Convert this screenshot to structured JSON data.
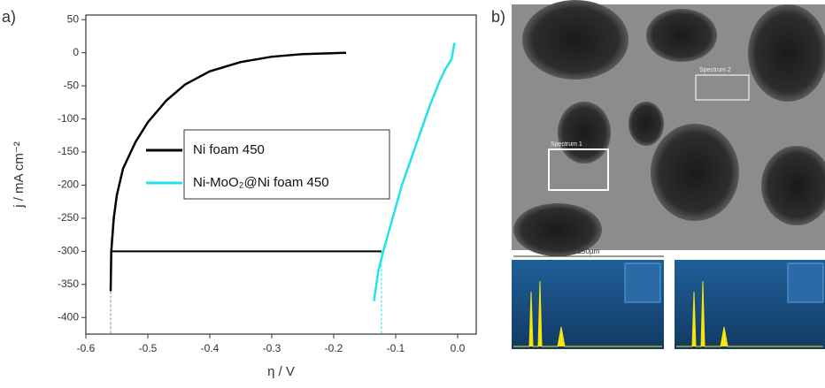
{
  "chart_data": {
    "type": "line",
    "panel_label": "a)",
    "xlabel": "η / V",
    "ylabel": "j / mA cm⁻²",
    "xlim": [
      -0.6,
      0.03
    ],
    "ylim": [
      -425,
      57
    ],
    "xticks": [
      -0.6,
      -0.5,
      -0.4,
      -0.3,
      -0.2,
      -0.1,
      {
        "value": 0,
        "label": "0.0"
      }
    ],
    "yticks": [
      50,
      0,
      -50,
      -100,
      -150,
      -200,
      -250,
      -300,
      -350,
      -400
    ],
    "legend": "center",
    "series": [
      {
        "name": "Ni foam 450",
        "color": "#000000",
        "x": [
          -0.56,
          -0.559,
          -0.555,
          -0.55,
          -0.54,
          -0.52,
          -0.5,
          -0.47,
          -0.44,
          -0.4,
          -0.35,
          -0.3,
          -0.25,
          -0.18
        ],
        "values": [
          -360,
          -300,
          -250,
          -215,
          -175,
          -135,
          -105,
          -72,
          -48,
          -28,
          -14,
          -6,
          -2,
          0
        ]
      },
      {
        "name": "Ni-MoO₂@Ni foam 450",
        "color": "#1ee3e8",
        "x": [
          -0.135,
          -0.128,
          -0.12,
          -0.105,
          -0.09,
          -0.075,
          -0.06,
          -0.045,
          -0.03,
          -0.02,
          -0.01,
          -0.005
        ],
        "values": [
          -375,
          -330,
          -300,
          -250,
          -200,
          -160,
          -120,
          -80,
          -45,
          -25,
          -10,
          15
        ]
      }
    ],
    "hline": {
      "y": -300,
      "x": [
        -0.56,
        -0.123
      ]
    },
    "vlines": [
      {
        "x": -0.56,
        "color": "#888888"
      },
      {
        "x": -0.123,
        "color": "#1ee3e8"
      }
    ]
  },
  "image": {
    "panel_label": "b)",
    "scale_bar": "250µm",
    "regions": [
      "Spectrum 1",
      "Spectrum 2"
    ]
  }
}
